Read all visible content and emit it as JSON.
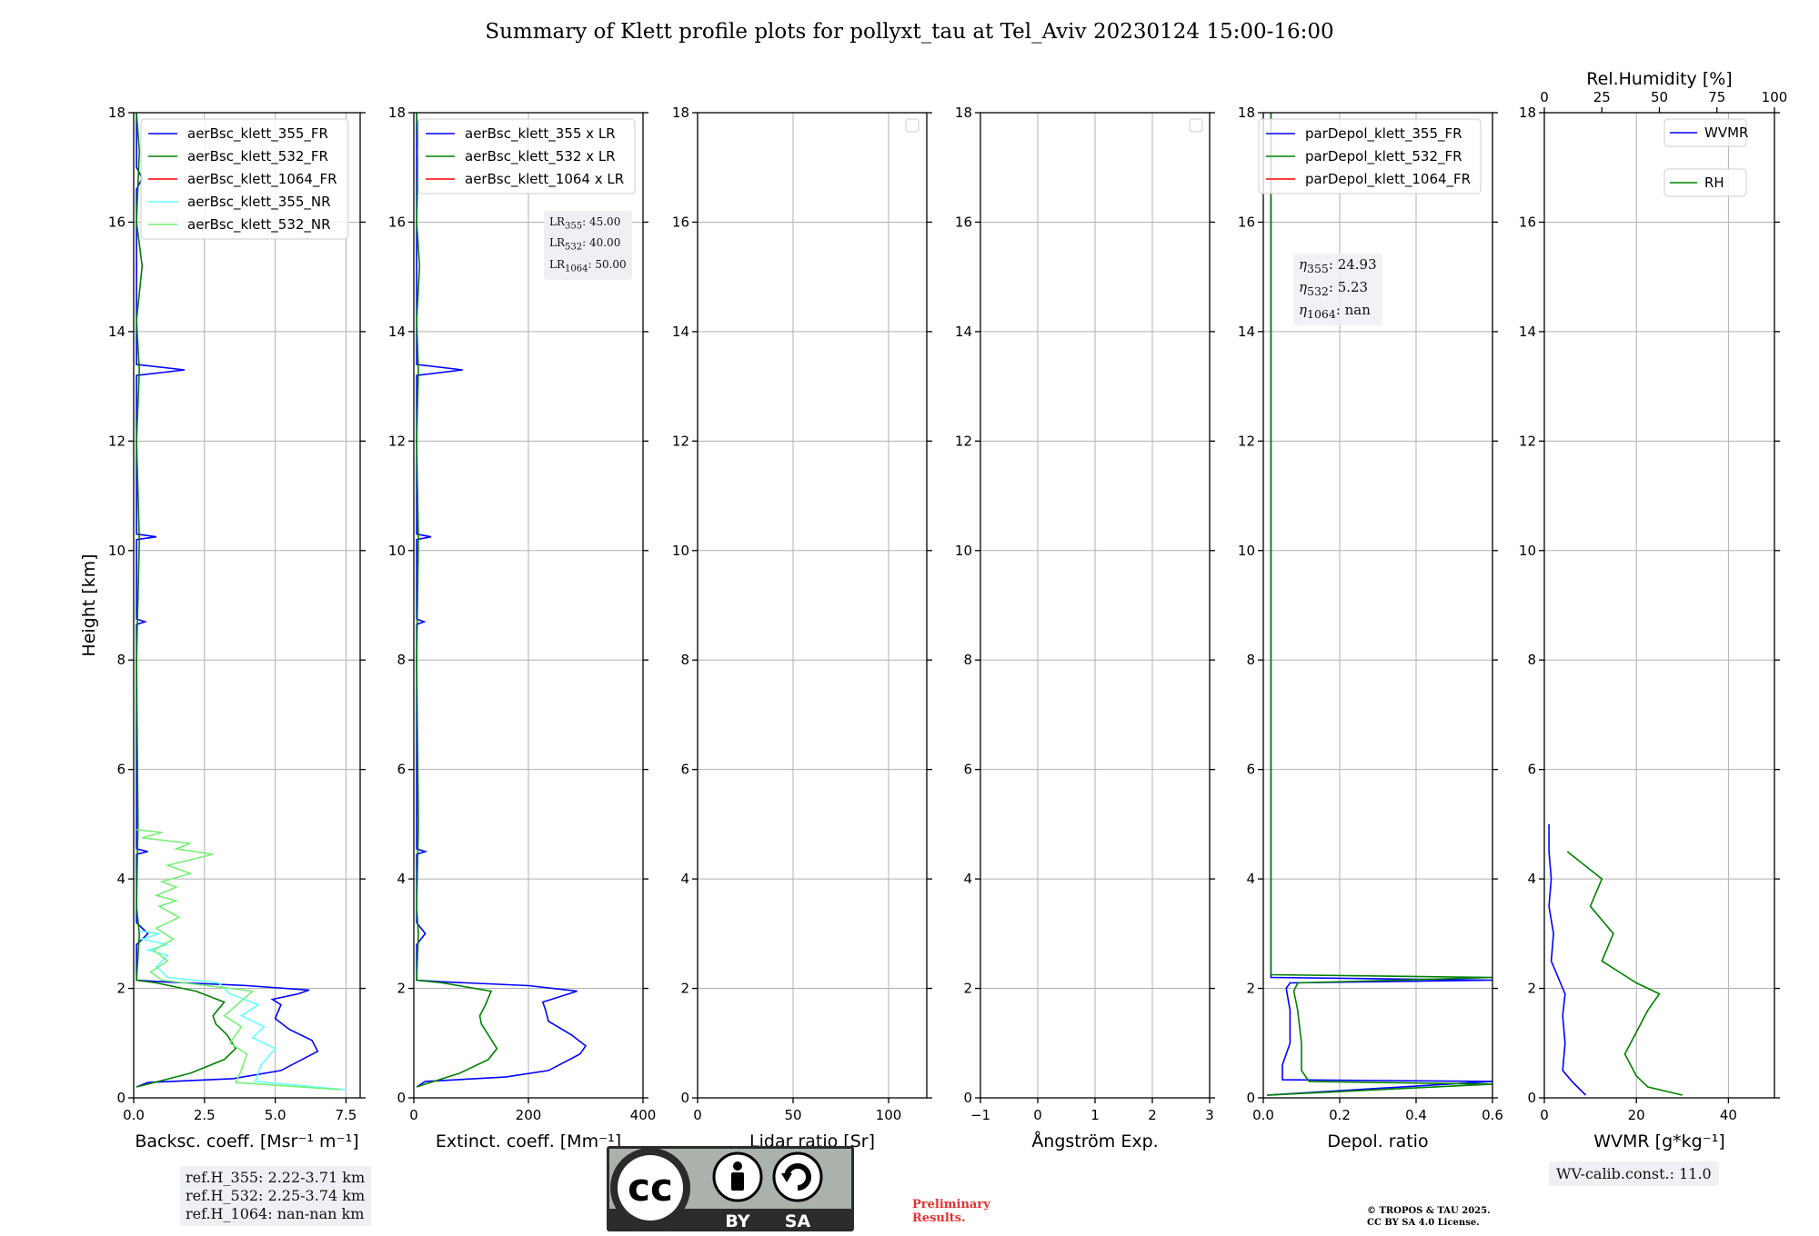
{
  "title": "Summary of Klett profile plots for pollyxt_tau at Tel_Aviv 20230124 15:00-16:00",
  "colors": {
    "blue": "#0000ff",
    "green": "#008000",
    "red": "#ff0000",
    "cyan": "#66ffff",
    "lightgreen": "#77ee77",
    "prelim": "#e53030"
  },
  "chart_data": [
    {
      "type": "line",
      "id": "backscatter",
      "xlabel": "Backsc. coeff. [Msr⁻¹ m⁻¹]",
      "ylabel": "Height [km]",
      "xlim": [
        0,
        8
      ],
      "ylim": [
        0,
        18
      ],
      "xticks": [
        0,
        2.5,
        5,
        7.5
      ],
      "xticklabels": [
        "0.0",
        "2.5",
        "5.0",
        "7.5"
      ],
      "yticks": [
        0,
        2,
        4,
        6,
        8,
        10,
        12,
        14,
        16,
        18
      ],
      "legend": [
        "aerBsc_klett_355_FR",
        "aerBsc_klett_532_FR",
        "aerBsc_klett_1064_FR",
        "aerBsc_klett_355_NR",
        "aerBsc_klett_532_NR"
      ],
      "legend_colors": [
        "#0000ff",
        "#008000",
        "#ff0000",
        "#66ffff",
        "#77ee77"
      ],
      "series": [
        {
          "name": "aerBsc_klett_355_FR",
          "color": "#0000ff",
          "points": [
            [
              0.1,
              0.2
            ],
            [
              0.5,
              0.28
            ],
            [
              3.5,
              0.35
            ],
            [
              5.2,
              0.5
            ],
            [
              6.5,
              0.85
            ],
            [
              6.3,
              1.05
            ],
            [
              5.5,
              1.25
            ],
            [
              5.0,
              1.45
            ],
            [
              5.2,
              1.7
            ],
            [
              4.9,
              1.8
            ],
            [
              5.8,
              1.9
            ],
            [
              6.2,
              1.97
            ],
            [
              4.0,
              2.05
            ],
            [
              1.0,
              2.12
            ],
            [
              0.1,
              2.15
            ],
            [
              0.1,
              2.8
            ],
            [
              0.5,
              3.0
            ],
            [
              0.1,
              3.2
            ],
            [
              0.1,
              4.45
            ],
            [
              0.5,
              4.5
            ],
            [
              0.1,
              4.55
            ],
            [
              0.1,
              8.65
            ],
            [
              0.4,
              8.7
            ],
            [
              0.1,
              8.75
            ],
            [
              0.1,
              10.2
            ],
            [
              0.8,
              10.25
            ],
            [
              0.1,
              10.3
            ],
            [
              0.1,
              13.2
            ],
            [
              1.8,
              13.3
            ],
            [
              0.1,
              13.4
            ],
            [
              0.1,
              16.6
            ],
            [
              0.3,
              16.8
            ],
            [
              0.1,
              17.0
            ],
            [
              0.1,
              18.0
            ]
          ]
        },
        {
          "name": "aerBsc_klett_532_FR",
          "color": "#008000",
          "points": [
            [
              0.1,
              0.2
            ],
            [
              0.5,
              0.25
            ],
            [
              2.0,
              0.45
            ],
            [
              3.2,
              0.7
            ],
            [
              3.6,
              0.9
            ],
            [
              3.3,
              1.15
            ],
            [
              2.9,
              1.35
            ],
            [
              2.8,
              1.5
            ],
            [
              3.2,
              1.75
            ],
            [
              2.2,
              1.95
            ],
            [
              0.8,
              2.1
            ],
            [
              0.1,
              2.15
            ],
            [
              0.2,
              3.0
            ],
            [
              0.1,
              3.5
            ],
            [
              0.15,
              5.0
            ],
            [
              0.1,
              8.0
            ],
            [
              0.2,
              10.2
            ],
            [
              0.1,
              12.0
            ],
            [
              0.2,
              13.3
            ],
            [
              0.1,
              14.2
            ],
            [
              0.3,
              15.2
            ],
            [
              0.1,
              16.0
            ],
            [
              0.2,
              17.3
            ],
            [
              0.1,
              18.0
            ]
          ]
        },
        {
          "name": "aerBsc_klett_355_NR",
          "color": "#66ffff",
          "points": [
            [
              7.5,
              0.15
            ],
            [
              4.3,
              0.3
            ],
            [
              4.5,
              0.6
            ],
            [
              5.0,
              0.9
            ],
            [
              4.2,
              1.1
            ],
            [
              4.6,
              1.3
            ],
            [
              3.8,
              1.5
            ],
            [
              4.4,
              1.7
            ],
            [
              3.4,
              1.9
            ],
            [
              3.0,
              2.1
            ],
            [
              1.2,
              2.2
            ],
            [
              0.8,
              2.4
            ],
            [
              1.2,
              2.6
            ],
            [
              0.5,
              2.7
            ],
            [
              1.2,
              2.8
            ],
            [
              0.3,
              2.9
            ],
            [
              0.9,
              3.0
            ],
            [
              0.2,
              3.05
            ]
          ]
        },
        {
          "name": "aerBsc_klett_532_NR",
          "color": "#77ee77",
          "points": [
            [
              7.3,
              0.15
            ],
            [
              3.6,
              0.28
            ],
            [
              3.8,
              0.5
            ],
            [
              4.0,
              0.8
            ],
            [
              3.4,
              1.0
            ],
            [
              3.8,
              1.3
            ],
            [
              3.2,
              1.5
            ],
            [
              4.2,
              1.95
            ],
            [
              1.0,
              2.15
            ],
            [
              0.6,
              2.3
            ],
            [
              1.2,
              2.5
            ],
            [
              0.7,
              2.7
            ],
            [
              1.4,
              2.9
            ],
            [
              0.8,
              3.1
            ],
            [
              1.6,
              3.3
            ],
            [
              0.9,
              3.5
            ],
            [
              1.5,
              3.6
            ],
            [
              0.8,
              3.7
            ],
            [
              1.5,
              3.85
            ],
            [
              1.0,
              3.95
            ],
            [
              2.0,
              4.1
            ],
            [
              1.2,
              4.25
            ],
            [
              2.8,
              4.45
            ],
            [
              1.5,
              4.55
            ],
            [
              2.0,
              4.65
            ],
            [
              0.3,
              4.75
            ],
            [
              1.0,
              4.85
            ],
            [
              0.1,
              4.9
            ]
          ]
        }
      ],
      "ref_heights": [
        "ref.H_355: 2.22-3.71 km",
        "ref.H_532: 2.25-3.74 km",
        "ref.H_1064: nan-nan km"
      ]
    },
    {
      "type": "line",
      "id": "extinction",
      "xlabel": "Extinct. coeff. [Mm⁻¹]",
      "xlim": [
        0,
        400
      ],
      "ylim": [
        0,
        18
      ],
      "xticks": [
        0,
        200,
        400
      ],
      "xticklabels": [
        "0",
        "200",
        "400"
      ],
      "yticks": [
        0,
        2,
        4,
        6,
        8,
        10,
        12,
        14,
        16,
        18
      ],
      "legend": [
        "aerBsc_klett_355 x LR",
        "aerBsc_klett_532 x LR",
        "aerBsc_klett_1064 x LR"
      ],
      "legend_colors": [
        "#0000ff",
        "#008000",
        "#ff0000"
      ],
      "lidar_ratios": {
        "LR355": "45.00",
        "LR532": "40.00",
        "LR1064": "50.00"
      },
      "series": [
        {
          "name": "aerBsc_klett_355 x LR",
          "color": "#0000ff",
          "points": [
            [
              5,
              0.2
            ],
            [
              20,
              0.3
            ],
            [
              160,
              0.38
            ],
            [
              235,
              0.5
            ],
            [
              290,
              0.8
            ],
            [
              300,
              0.95
            ],
            [
              275,
              1.15
            ],
            [
              235,
              1.4
            ],
            [
              230,
              1.6
            ],
            [
              225,
              1.75
            ],
            [
              285,
              1.95
            ],
            [
              200,
              2.05
            ],
            [
              50,
              2.12
            ],
            [
              5,
              2.15
            ],
            [
              5,
              2.8
            ],
            [
              20,
              3.0
            ],
            [
              5,
              3.2
            ],
            [
              5,
              4.45
            ],
            [
              20,
              4.5
            ],
            [
              5,
              4.55
            ],
            [
              5,
              8.65
            ],
            [
              18,
              8.7
            ],
            [
              5,
              8.75
            ],
            [
              5,
              10.2
            ],
            [
              30,
              10.25
            ],
            [
              5,
              10.3
            ],
            [
              5,
              13.2
            ],
            [
              85,
              13.3
            ],
            [
              5,
              13.4
            ],
            [
              5,
              18
            ]
          ]
        },
        {
          "name": "aerBsc_klett_532 x LR",
          "color": "#008000",
          "points": [
            [
              5,
              0.2
            ],
            [
              20,
              0.25
            ],
            [
              80,
              0.45
            ],
            [
              130,
              0.7
            ],
            [
              145,
              0.9
            ],
            [
              130,
              1.15
            ],
            [
              118,
              1.35
            ],
            [
              115,
              1.5
            ],
            [
              125,
              1.7
            ],
            [
              135,
              1.95
            ],
            [
              50,
              2.1
            ],
            [
              5,
              2.15
            ],
            [
              8,
              3.0
            ],
            [
              5,
              3.5
            ],
            [
              8,
              5.0
            ],
            [
              5,
              8.0
            ],
            [
              8,
              10.2
            ],
            [
              5,
              12.0
            ],
            [
              8,
              13.3
            ],
            [
              5,
              14.2
            ],
            [
              10,
              15.2
            ],
            [
              5,
              16.0
            ],
            [
              8,
              17.3
            ],
            [
              5,
              18
            ]
          ]
        }
      ]
    },
    {
      "type": "line",
      "id": "lidar_ratio",
      "xlabel": "Lidar ratio [Sr]",
      "xlim": [
        0,
        120
      ],
      "ylim": [
        0,
        18
      ],
      "xticks": [
        0,
        50,
        100
      ],
      "xticklabels": [
        "0",
        "50",
        "100"
      ],
      "yticks": [
        0,
        2,
        4,
        6,
        8,
        10,
        12,
        14,
        16,
        18
      ],
      "series": []
    },
    {
      "type": "line",
      "id": "angstrom",
      "xlabel": "Ångström Exp.",
      "xlim": [
        -1,
        3
      ],
      "ylim": [
        0,
        18
      ],
      "xticks": [
        -1,
        0,
        1,
        2,
        3
      ],
      "xticklabels": [
        "−1",
        "0",
        "1",
        "2",
        "3"
      ],
      "yticks": [
        0,
        2,
        4,
        6,
        8,
        10,
        12,
        14,
        16,
        18
      ],
      "series": []
    },
    {
      "type": "line",
      "id": "depol",
      "xlabel": "Depol. ratio",
      "xlim": [
        0,
        0.6
      ],
      "ylim": [
        0,
        18
      ],
      "xticks": [
        0,
        0.2,
        0.4,
        0.6
      ],
      "xticklabels": [
        "0.0",
        "0.2",
        "0.4",
        "0.6"
      ],
      "yticks": [
        0,
        2,
        4,
        6,
        8,
        10,
        12,
        14,
        16,
        18
      ],
      "legend": [
        "parDepol_klett_355_FR",
        "parDepol_klett_532_FR",
        "parDepol_klett_1064_FR"
      ],
      "legend_colors": [
        "#0000ff",
        "#008000",
        "#ff0000"
      ],
      "eta": {
        "eta355": "24.93",
        "eta532": "5.23",
        "eta1064": "nan"
      },
      "series": [
        {
          "name": "parDepol_klett_355_FR",
          "color": "#0000ff",
          "points": [
            [
              0.01,
              0.05
            ],
            [
              0.6,
              0.3
            ],
            [
              0.05,
              0.33
            ],
            [
              0.05,
              0.6
            ],
            [
              0.07,
              1.0
            ],
            [
              0.07,
              1.6
            ],
            [
              0.06,
              2.0
            ],
            [
              0.07,
              2.1
            ],
            [
              0.6,
              2.15
            ],
            [
              0.02,
              2.2
            ],
            [
              0.02,
              18
            ]
          ]
        },
        {
          "name": "parDepol_klett_532_FR",
          "color": "#008000",
          "points": [
            [
              0.01,
              0.05
            ],
            [
              0.6,
              0.25
            ],
            [
              0.12,
              0.3
            ],
            [
              0.1,
              0.5
            ],
            [
              0.1,
              1.0
            ],
            [
              0.09,
              1.6
            ],
            [
              0.08,
              1.95
            ],
            [
              0.09,
              2.1
            ],
            [
              0.6,
              2.2
            ],
            [
              0.02,
              2.25
            ],
            [
              0.02,
              18
            ]
          ]
        }
      ]
    },
    {
      "type": "line",
      "id": "wvmr",
      "xlabel": "WVMR [g*kg⁻¹]",
      "top_xlabel": "Rel.Humidity [%]",
      "xlim": [
        0,
        50
      ],
      "ylim": [
        0,
        18
      ],
      "xticks": [
        0,
        20,
        40
      ],
      "xticklabels": [
        "0",
        "20",
        "40"
      ],
      "top_xlim": [
        0,
        100
      ],
      "top_xticks": [
        0,
        25,
        50,
        75,
        100
      ],
      "top_xticklabels": [
        "0",
        "25",
        "50",
        "75",
        "100"
      ],
      "yticks": [
        0,
        2,
        4,
        6,
        8,
        10,
        12,
        14,
        16,
        18
      ],
      "legend": [
        "WVMR",
        "RH"
      ],
      "legend_colors": [
        "#0000ff",
        "#008000"
      ],
      "wv_calib": "WV-calib.const.: 11.0",
      "series": [
        {
          "name": "WVMR",
          "color": "#0000ff",
          "points": [
            [
              9,
              0.05
            ],
            [
              6,
              0.3
            ],
            [
              4,
              0.5
            ],
            [
              4.5,
              1.0
            ],
            [
              4,
              1.5
            ],
            [
              4.5,
              1.9
            ],
            [
              3.5,
              2.1
            ],
            [
              1.5,
              2.5
            ],
            [
              2,
              3.0
            ],
            [
              1,
              3.5
            ],
            [
              1.5,
              4.0
            ],
            [
              1,
              4.5
            ],
            [
              1,
              5.0
            ]
          ]
        },
        {
          "name": "RH",
          "color": "#008000",
          "points": [
            [
              60,
              0.05
            ],
            [
              45,
              0.2
            ],
            [
              40,
              0.4
            ],
            [
              35,
              0.8
            ],
            [
              40,
              1.2
            ],
            [
              45,
              1.6
            ],
            [
              50,
              1.9
            ],
            [
              40,
              2.1
            ],
            [
              25,
              2.5
            ],
            [
              30,
              3.0
            ],
            [
              20,
              3.5
            ],
            [
              25,
              4.0
            ],
            [
              10,
              4.5
            ]
          ]
        }
      ]
    }
  ],
  "footer": {
    "cc_letters": "cc",
    "cc_by": "BY",
    "cc_sa": "SA",
    "prelim_line1": "Preliminary",
    "prelim_line2": "Results.",
    "copyright_line1": "© TROPOS & TAU 2025.",
    "copyright_line2": "CC BY SA 4.0 License."
  }
}
